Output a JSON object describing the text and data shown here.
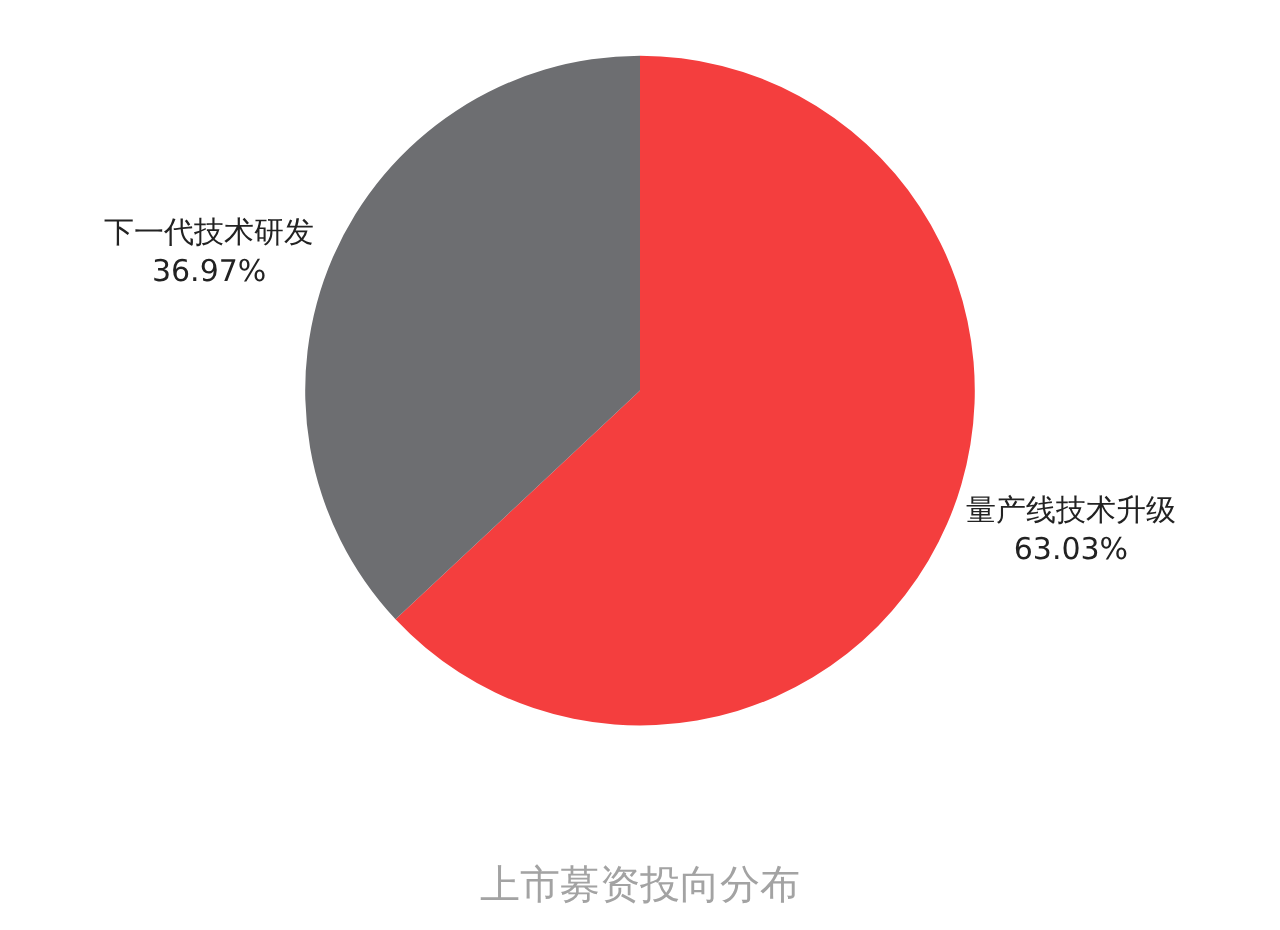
{
  "chart_data": {
    "type": "pie",
    "title": "上市募资投向分布",
    "categories": [
      "量产线技术升级",
      "下一代技术研发"
    ],
    "values": [
      63.03,
      36.97
    ],
    "value_labels": [
      "63.03%",
      "36.97%"
    ],
    "colors": [
      "#f43e3e",
      "#6d6e71"
    ],
    "legend": false
  }
}
